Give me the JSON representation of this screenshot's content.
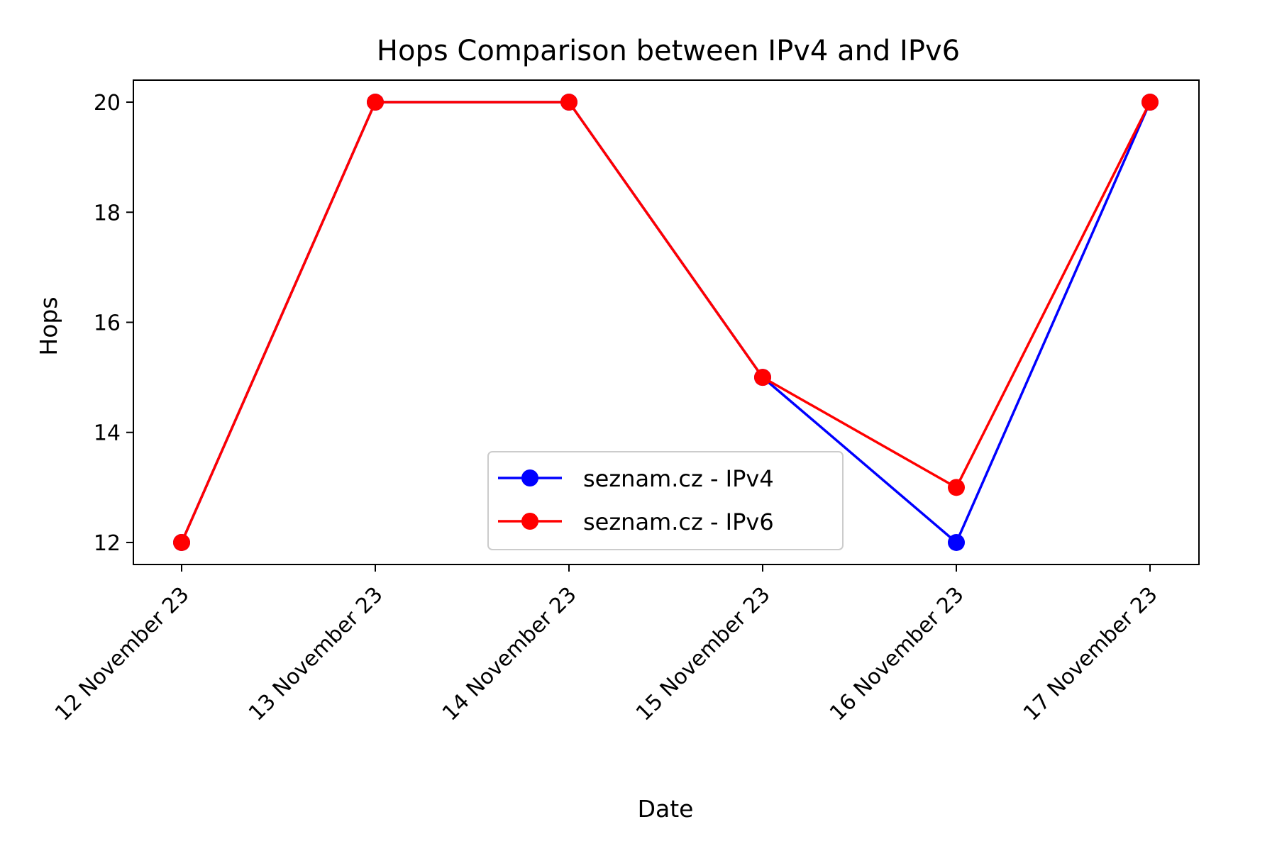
{
  "chart_data": {
    "type": "line",
    "title": "Hops Comparison between IPv4 and IPv6",
    "xlabel": "Date",
    "ylabel": "Hops",
    "categories": [
      "12 November 23",
      "13 November 23",
      "14 November 23",
      "15 November 23",
      "16 November 23",
      "17 November 23"
    ],
    "yticks": [
      "12",
      "14",
      "16",
      "18",
      "20"
    ],
    "ylim": [
      11.6,
      20.4
    ],
    "grid": false,
    "legend_position": "lower-center",
    "series": [
      {
        "name": "seznam.cz - IPv4",
        "color": "#0000ff",
        "marker": "circle",
        "values": [
          12,
          20,
          20,
          15,
          12,
          20
        ]
      },
      {
        "name": "seznam.cz - IPv6",
        "color": "#ff0000",
        "marker": "circle",
        "values": [
          12,
          20,
          20,
          15,
          13,
          20
        ]
      }
    ]
  }
}
